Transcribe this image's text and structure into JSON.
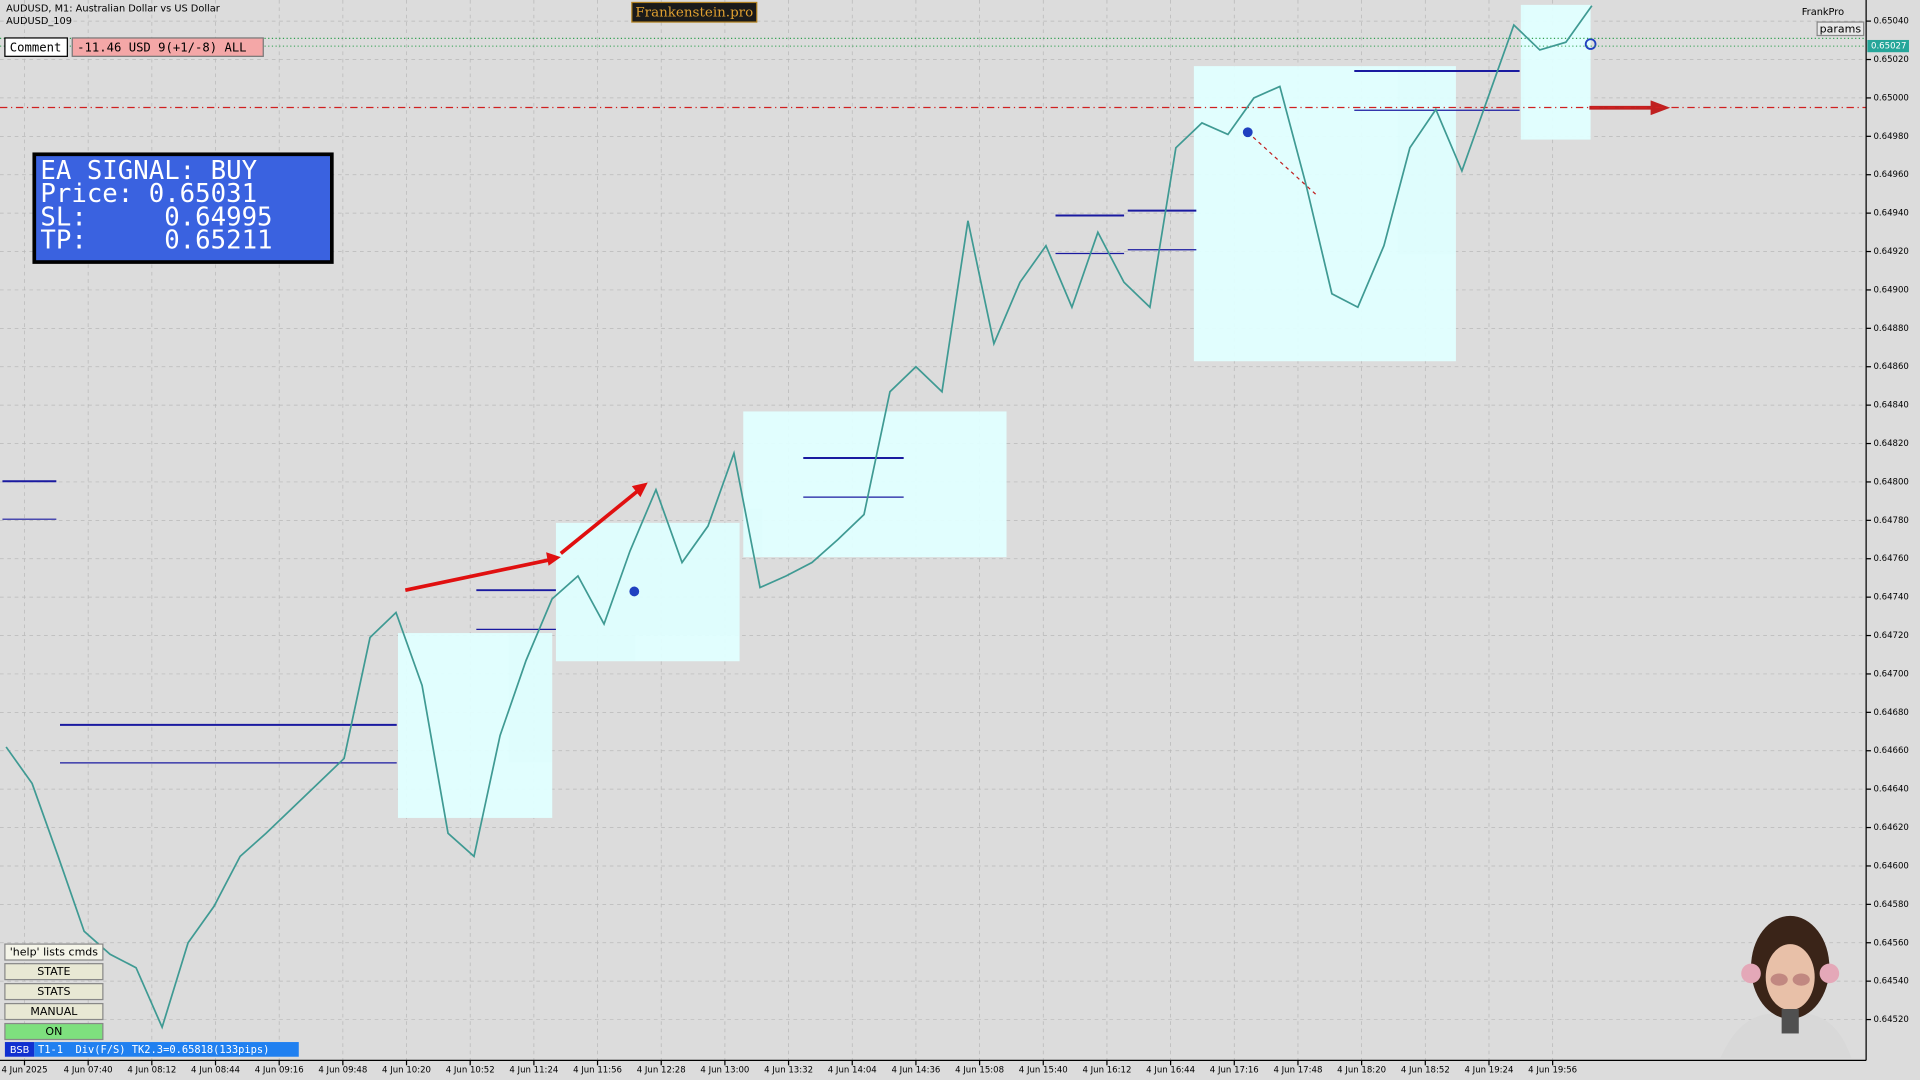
{
  "header": {
    "symbol": "AUDUSD, M1:  Australian Dollar vs US Dollar",
    "account": "AUDUSD_109"
  },
  "brand": "Frankenstein.pro",
  "comment": {
    "label": "Comment",
    "text": "-11.46 USD 9(+1/-8) ALL"
  },
  "signal": {
    "lines": [
      "EA SIGNAL: BUY",
      "Price: 0.65031",
      "SL:     0.64995",
      "TP:     0.65211"
    ]
  },
  "top_right": {
    "user": "FrankPro",
    "button": "params"
  },
  "buttons": {
    "hint": "'help' lists cmds",
    "items": [
      "STATE",
      "STATS",
      "MANUAL",
      "ON"
    ]
  },
  "status": {
    "badge": "BSB",
    "text": "T1-1  Div(F/S) TK2.3=0.65818(133pips)"
  },
  "chart_data": {
    "type": "line",
    "color": "#3f9a93",
    "values": [
      0.64662,
      0.64643,
      0.64605,
      0.64566,
      0.64554,
      0.64547,
      0.64516,
      0.6456,
      0.64579,
      0.64605,
      0.64617,
      0.6463,
      0.64643,
      0.64656,
      0.64719,
      0.64732,
      0.64694,
      0.64617,
      0.64605,
      0.64668,
      0.64707,
      0.64739,
      0.64751,
      0.64726,
      0.64764,
      0.64796,
      0.64758,
      0.64777,
      0.64815,
      0.64745,
      0.64751,
      0.64758,
      0.6477,
      0.64783,
      0.64847,
      0.6486,
      0.64847,
      0.64936,
      0.64872,
      0.64904,
      0.64923,
      0.64891,
      0.6493,
      0.64904,
      0.64891,
      0.64974,
      0.64987,
      0.64981,
      0.65,
      0.65006,
      0.64955,
      0.64898,
      0.64891,
      0.64923,
      0.64974,
      0.64994,
      0.64962,
      0.65,
      0.65038,
      0.65025,
      0.65029,
      0.65048
    ],
    "ylim": [
      0.645,
      0.65051
    ],
    "yticks": [
      {
        "value": 0.6452,
        "label": "0.64520"
      },
      {
        "value": 0.6454,
        "label": "0.64540"
      },
      {
        "value": 0.6456,
        "label": "0.64560"
      },
      {
        "value": 0.6458,
        "label": "0.64580"
      },
      {
        "value": 0.646,
        "label": "0.64600"
      },
      {
        "value": 0.6462,
        "label": "0.64620"
      },
      {
        "value": 0.6464,
        "label": "0.64640"
      },
      {
        "value": 0.6466,
        "label": "0.64660"
      },
      {
        "value": 0.6468,
        "label": "0.64680"
      },
      {
        "value": 0.647,
        "label": "0.64700"
      },
      {
        "value": 0.6472,
        "label": "0.64720"
      },
      {
        "value": 0.6474,
        "label": "0.64740"
      },
      {
        "value": 0.6476,
        "label": "0.64760"
      },
      {
        "value": 0.6478,
        "label": "0.64780"
      },
      {
        "value": 0.648,
        "label": "0.64800"
      },
      {
        "value": 0.6482,
        "label": "0.64820"
      },
      {
        "value": 0.6484,
        "label": "0.64840"
      },
      {
        "value": 0.6486,
        "label": "0.64860"
      },
      {
        "value": 0.6488,
        "label": "0.64880"
      },
      {
        "value": 0.649,
        "label": "0.64900"
      },
      {
        "value": 0.6492,
        "label": "0.64920"
      },
      {
        "value": 0.6494,
        "label": "0.64940"
      },
      {
        "value": 0.6496,
        "label": "0.64960"
      },
      {
        "value": 0.6498,
        "label": "0.64980"
      },
      {
        "value": 0.65,
        "label": "0.65000"
      },
      {
        "value": 0.6502,
        "label": "0.65020"
      },
      {
        "value": 0.6504,
        "label": "0.65040"
      }
    ],
    "time_labels": [
      "4 Jun 2025",
      "4 Jun 07:40",
      "4 Jun 08:12",
      "4 Jun 08:44",
      "4 Jun 09:16",
      "4 Jun 09:48",
      "4 Jun 10:20",
      "4 Jun 10:52",
      "4 Jun 11:24",
      "4 Jun 11:56",
      "4 Jun 12:28",
      "4 Jun 13:00",
      "4 Jun 13:32",
      "4 Jun 14:04",
      "4 Jun 14:36",
      "4 Jun 15:08",
      "4 Jun 15:40",
      "4 Jun 16:12",
      "4 Jun 16:44",
      "4 Jun 17:16",
      "4 Jun 17:48",
      "4 Jun 18:20",
      "4 Jun 18:52",
      "4 Jun 19:24",
      "4 Jun 19:56"
    ],
    "current_price": {
      "value": 0.65027,
      "label": "0.65027"
    },
    "sl_line": 0.64995,
    "entry_line": 0.65031,
    "grid": true
  }
}
